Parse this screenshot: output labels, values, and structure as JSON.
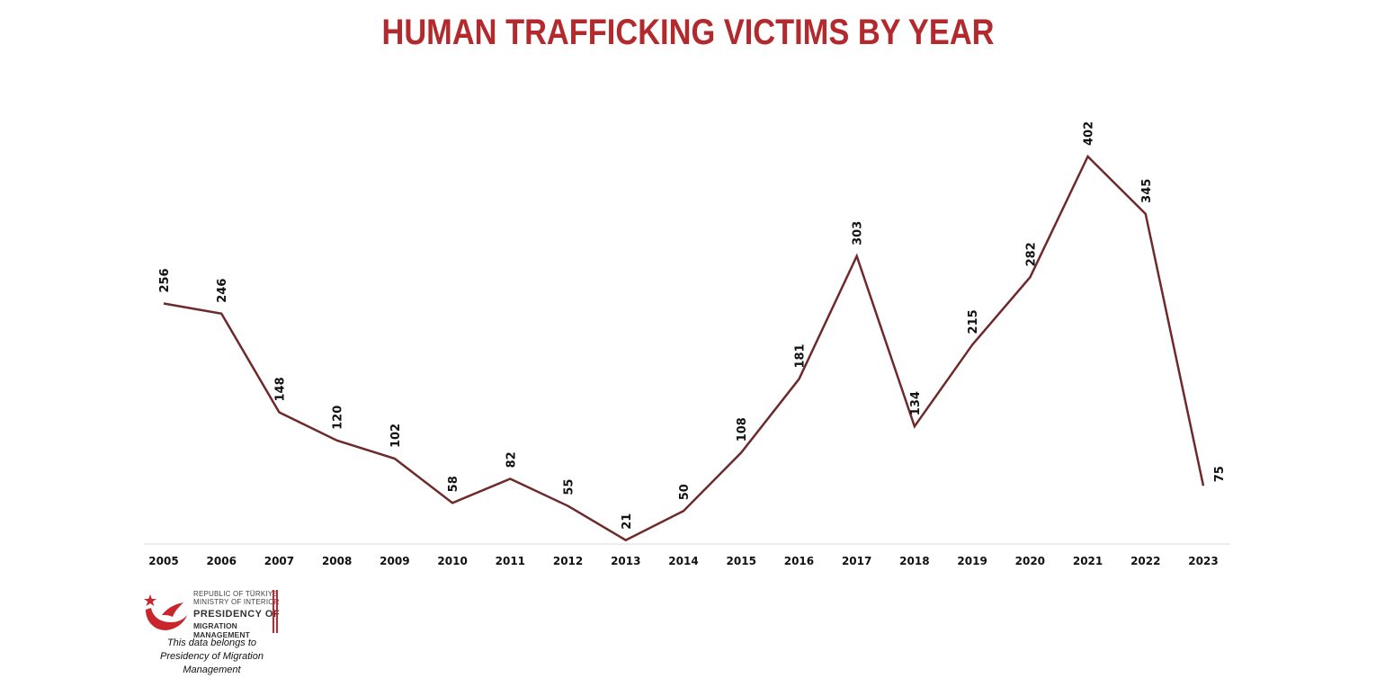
{
  "title": "HUMAN TRAFFICKING VICTIMS BY YEAR",
  "colors": {
    "title": "#b22a2e",
    "line": "#6e2a2b",
    "axis": "#d9d9d9",
    "logo": "#c8262c"
  },
  "logo": {
    "line1": "REPUBLIC OF TÜRKIYE",
    "line2": "MINISTRY OF INTERIOR",
    "line3": "PRESIDENCY OF",
    "line4": "MIGRATION MANAGEMENT",
    "icon": "crescent-star-bird-emblem"
  },
  "credit": {
    "line1": "This data belongs to",
    "line2": "Presidency of Migration Management"
  },
  "chart_data": {
    "type": "line",
    "title": "HUMAN TRAFFICKING VICTIMS BY YEAR",
    "categories": [
      "2005",
      "2006",
      "2007",
      "2008",
      "2009",
      "2010",
      "2011",
      "2012",
      "2013",
      "2014",
      "2015",
      "2016",
      "2017",
      "2018",
      "2019",
      "2020",
      "2021",
      "2022",
      "2023"
    ],
    "values": [
      256,
      246,
      148,
      120,
      102,
      58,
      82,
      55,
      21,
      50,
      108,
      181,
      303,
      134,
      215,
      282,
      402,
      345,
      75
    ],
    "xlabel": "",
    "ylabel": "",
    "ylim": [
      0,
      402
    ],
    "grid": false,
    "legend": "none",
    "data_labels": true
  }
}
